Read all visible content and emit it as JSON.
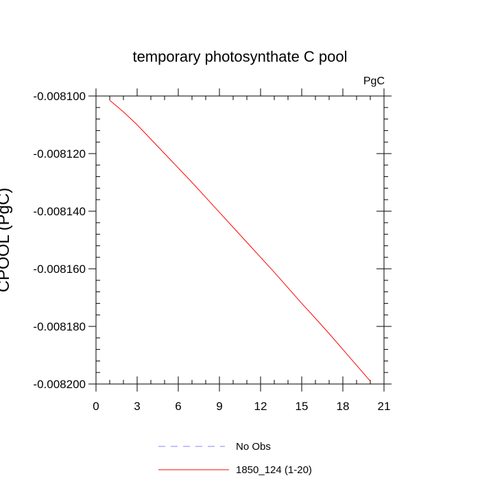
{
  "chart_data": {
    "type": "line",
    "title": "temporary photosynthate C pool",
    "units_label": "PgC",
    "xlabel": "",
    "ylabel": "CPOOL (PgC)",
    "xlim": [
      0,
      21
    ],
    "ylim": [
      -0.0082,
      -0.0081
    ],
    "x_ticks": [
      0,
      3,
      6,
      9,
      12,
      15,
      18,
      21
    ],
    "x_tick_labels": [
      "0",
      "3",
      "6",
      "9",
      "12",
      "15",
      "18",
      "21"
    ],
    "y_ticks": [
      -0.0081,
      -0.00812,
      -0.00814,
      -0.00816,
      -0.00818,
      -0.0082
    ],
    "y_tick_labels": [
      "-0.008100",
      "-0.008120",
      "-0.008140",
      "-0.008160",
      "-0.008180",
      "-0.008200"
    ],
    "grid": false,
    "legend_position": "bottom",
    "series": [
      {
        "name": "No Obs",
        "color": "#8080ff",
        "dash": "dashed",
        "x": [],
        "y": []
      },
      {
        "name": "1850_124 (1-20)",
        "color": "#ff0000",
        "dash": "solid",
        "x": [
          1,
          2,
          3,
          4,
          5,
          6,
          7,
          8,
          9,
          10,
          11,
          12,
          13,
          14,
          15,
          16,
          17,
          18,
          19,
          20
        ],
        "y": [
          -0.0081015,
          -0.0081055,
          -0.00811,
          -0.008115,
          -0.00812,
          -0.008125,
          -0.00813,
          -0.0081352,
          -0.0081404,
          -0.0081456,
          -0.0081508,
          -0.008156,
          -0.0081612,
          -0.0081666,
          -0.008172,
          -0.0081772,
          -0.0081825,
          -0.008188,
          -0.0081935,
          -0.008199
        ]
      }
    ]
  }
}
